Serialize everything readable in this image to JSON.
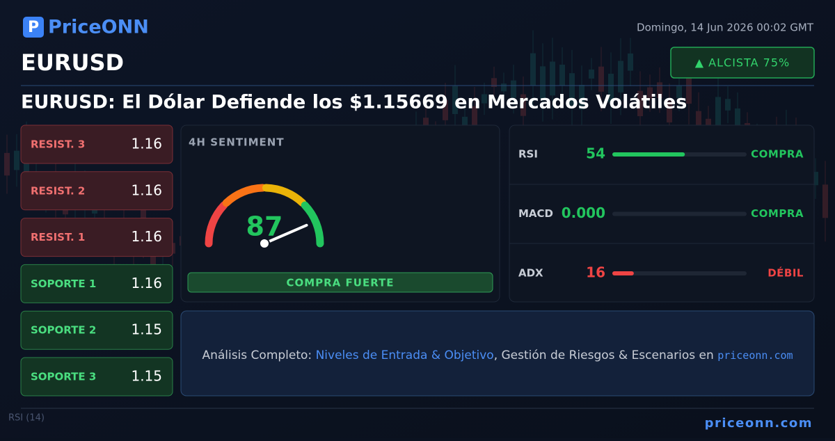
{
  "header": {
    "logo": "PriceONN",
    "date": "Domingo, 14 Jun 2026 00:02 GMT",
    "symbol": "EURUSD",
    "badge": "▲  ALCISTA 75%"
  },
  "title": "EURUSD: El Dólar Defiende los $1.15669 en Mercados Volátiles",
  "levels": [
    {
      "label": "RESIST. 3",
      "value": "1.16",
      "kind": "resistance"
    },
    {
      "label": "RESIST. 2",
      "value": "1.16",
      "kind": "resistance"
    },
    {
      "label": "RESIST. 1",
      "value": "1.16",
      "kind": "resistance"
    },
    {
      "label": "SOPORTE 1",
      "value": "1.16",
      "kind": "support"
    },
    {
      "label": "SOPORTE 2",
      "value": "1.15",
      "kind": "support"
    },
    {
      "label": "SOPORTE 3",
      "value": "1.15",
      "kind": "support"
    }
  ],
  "sentiment": {
    "title": "4H SENTIMENT",
    "value": 87,
    "range": [
      0,
      100
    ],
    "verdict": "COMPRA FUERTE"
  },
  "indicators": {
    "range": [
      0,
      100
    ],
    "rows": [
      {
        "name": "RSI",
        "value": 54,
        "color": "#22c55e",
        "signal": "COMPRA"
      },
      {
        "name": "MACD",
        "value": 0,
        "value_label": "0.000",
        "color": "#22c55e",
        "signal": "COMPRA"
      },
      {
        "name": "ADX",
        "value": 16,
        "color": "#ef4444",
        "signal": "DÉBIL"
      }
    ]
  },
  "promo": {
    "lead": "Análisis Completo: ",
    "link": "Niveles de Entrada & Objetivo",
    "middle": ", Gestión de Riesgos & Escenarios en ",
    "site": "priceonn.com"
  },
  "background_label": "RSI  (14)",
  "footer": "priceonn.com"
}
